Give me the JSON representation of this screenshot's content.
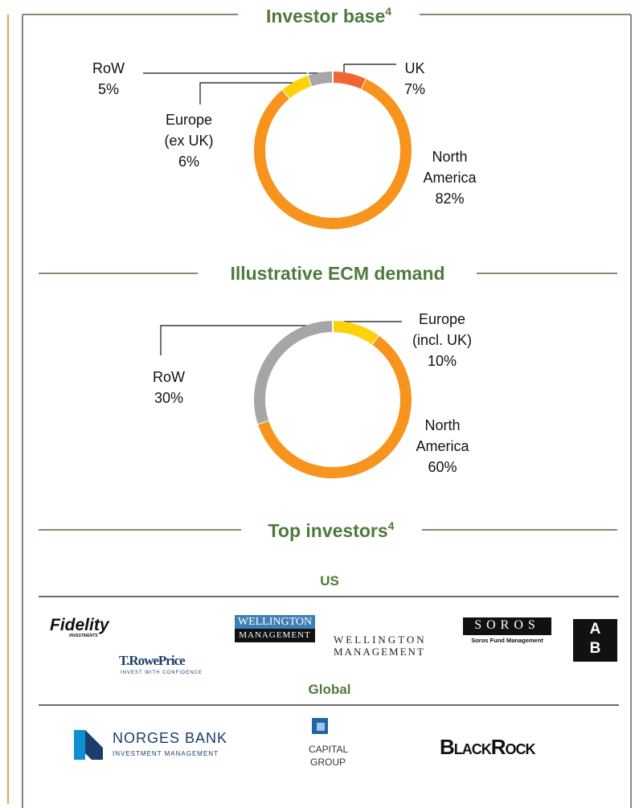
{
  "chart_data": [
    {
      "type": "pie",
      "donut": true,
      "title": "Investor base",
      "title_note": "4",
      "categories": [
        "UK",
        "North America",
        "Europe (ex UK)",
        "RoW"
      ],
      "values": [
        7,
        82,
        6,
        5
      ],
      "value_labels": [
        "7%",
        "82%",
        "6%",
        "5%"
      ],
      "colors": [
        "#f26531",
        "#f7941d",
        "#fdd20b",
        "#a6a6a6"
      ]
    },
    {
      "type": "pie",
      "donut": true,
      "title": "Illustrative ECM demand",
      "categories": [
        "Europe (incl. UK)",
        "North America",
        "RoW"
      ],
      "values": [
        10,
        60,
        30
      ],
      "value_labels": [
        "10%",
        "60%",
        "30%"
      ],
      "colors": [
        "#fdd20b",
        "#f7941d",
        "#a6a6a6"
      ]
    }
  ],
  "top_investors": {
    "title": "Top investors",
    "title_note": "4",
    "groups": [
      {
        "name": "US",
        "logos": [
          {
            "lines": [
              "Fidelity",
              "INVESTMENTS"
            ]
          },
          {
            "lines": [
              "WELLINGTON",
              "MANAGEMENT"
            ]
          },
          {
            "lines": [
              "WELLINGTON",
              "MANAGEMENT"
            ]
          },
          {
            "lines": [
              "SOROS",
              "Soros Fund Management"
            ]
          },
          {
            "lines": [
              "A",
              "B"
            ]
          },
          {
            "lines": [
              "T.RowePrice",
              "INVEST WITH CONFIDENCE"
            ]
          }
        ]
      },
      {
        "name": "Global",
        "logos": [
          {
            "lines": [
              "NORGES BANK",
              "INVESTMENT MANAGEMENT"
            ]
          },
          {
            "lines": [
              "CAPITAL",
              "GROUP"
            ]
          },
          {
            "lines": [
              "BlackRock"
            ]
          }
        ]
      }
    ]
  }
}
